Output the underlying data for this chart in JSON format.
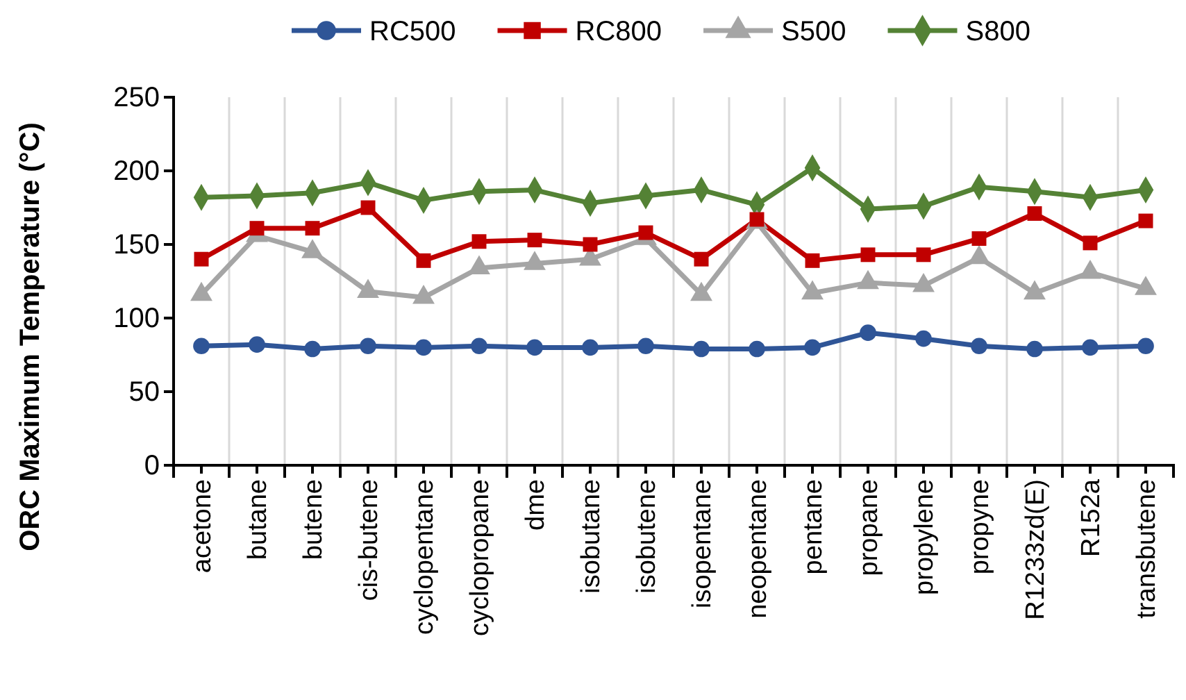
{
  "chart_data": {
    "type": "line",
    "ylabel": "ORC Maximum  Temperature (°C)",
    "categories": [
      "acetone",
      "butane",
      "butene",
      "cis-butene",
      "cyclopentane",
      "cyclopropane",
      "dme",
      "isobutane",
      "isobutene",
      "isopentane",
      "neopentane",
      "pentane",
      "propane",
      "propylene",
      "propyne",
      "R1233zd(E)",
      "R152a",
      "transbutene"
    ],
    "series": [
      {
        "name": "RC500",
        "color": "#2f5597",
        "marker": "circle",
        "values": [
          81,
          82,
          79,
          81,
          80,
          81,
          80,
          80,
          81,
          79,
          79,
          80,
          90,
          86,
          81,
          79,
          80,
          81
        ]
      },
      {
        "name": "RC800",
        "color": "#c00000",
        "marker": "square",
        "values": [
          140,
          161,
          161,
          175,
          139,
          152,
          153,
          150,
          158,
          140,
          167,
          139,
          143,
          143,
          154,
          171,
          151,
          166
        ]
      },
      {
        "name": "S500",
        "color": "#a5a5a5",
        "marker": "triangle",
        "values": [
          116,
          156,
          145,
          118,
          114,
          134,
          137,
          140,
          154,
          116,
          165,
          117,
          124,
          122,
          141,
          117,
          131,
          120
        ]
      },
      {
        "name": "S800",
        "color": "#548235",
        "marker": "diamond",
        "values": [
          182,
          183,
          185,
          192,
          180,
          186,
          187,
          178,
          183,
          187,
          177,
          202,
          174,
          176,
          189,
          186,
          182,
          187
        ]
      }
    ],
    "ylim": [
      0,
      250
    ],
    "yticks": [
      0,
      50,
      100,
      150,
      200,
      250
    ],
    "grid": "x",
    "legend": "top"
  }
}
